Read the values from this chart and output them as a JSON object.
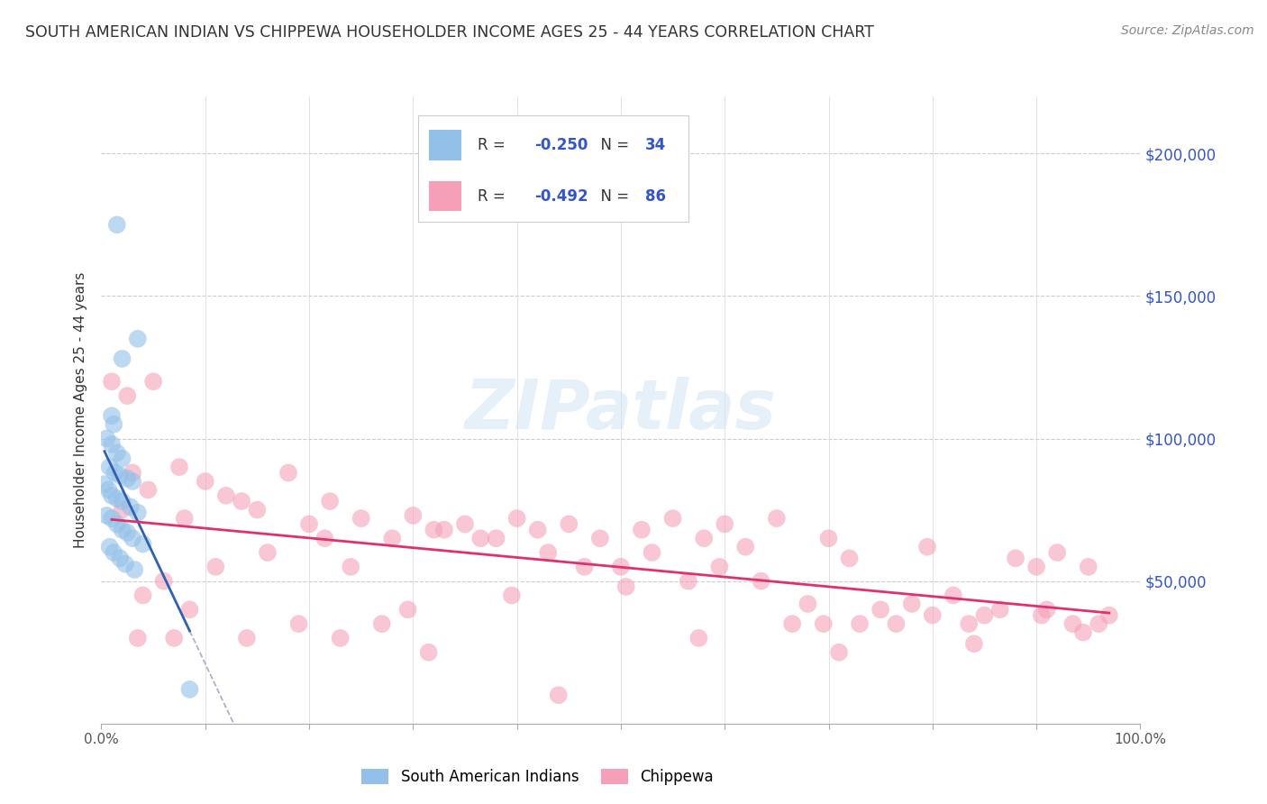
{
  "title": "SOUTH AMERICAN INDIAN VS CHIPPEWA HOUSEHOLDER INCOME AGES 25 - 44 YEARS CORRELATION CHART",
  "source": "Source: ZipAtlas.com",
  "ylabel": "Householder Income Ages 25 - 44 years",
  "background_color": "#ffffff",
  "blue_label": "South American Indians",
  "pink_label": "Chippewa",
  "blue_R": "-0.250",
  "blue_N": "34",
  "pink_R": "-0.492",
  "pink_N": "86",
  "blue_color": "#92c0e8",
  "pink_color": "#f5a0b8",
  "blue_line_color": "#3060b0",
  "pink_line_color": "#e03070",
  "dashed_line_color": "#aaaacc",
  "yticks": [
    0,
    50000,
    100000,
    150000,
    200000
  ],
  "xlim": [
    0,
    100
  ],
  "ylim": [
    0,
    220000
  ],
  "blue_x": [
    1.5,
    3.5,
    2.0,
    1.0,
    1.2,
    0.5,
    1.0,
    1.5,
    2.0,
    0.8,
    1.3,
    1.8,
    2.5,
    3.0,
    0.3,
    0.7,
    1.0,
    1.5,
    2.0,
    2.8,
    3.5,
    0.5,
    1.0,
    1.5,
    2.0,
    2.5,
    3.0,
    4.0,
    0.8,
    1.2,
    1.8,
    2.3,
    3.2,
    8.5
  ],
  "blue_y": [
    175000,
    135000,
    128000,
    108000,
    105000,
    100000,
    98000,
    95000,
    93000,
    90000,
    88000,
    87000,
    86000,
    85000,
    84000,
    82000,
    80000,
    79000,
    78000,
    76000,
    74000,
    73000,
    72000,
    70000,
    68000,
    67000,
    65000,
    63000,
    62000,
    60000,
    58000,
    56000,
    54000,
    12000
  ],
  "pink_x": [
    1.0,
    2.5,
    5.0,
    3.0,
    4.5,
    7.5,
    10.0,
    8.0,
    12.0,
    15.0,
    18.0,
    20.0,
    22.0,
    25.0,
    28.0,
    30.0,
    32.0,
    35.0,
    38.0,
    40.0,
    42.0,
    45.0,
    48.0,
    50.0,
    52.0,
    55.0,
    58.0,
    60.0,
    62.0,
    65.0,
    68.0,
    70.0,
    72.0,
    75.0,
    78.0,
    80.0,
    82.0,
    85.0,
    88.0,
    90.0,
    92.0,
    95.0,
    97.0,
    2.0,
    4.0,
    6.0,
    8.5,
    11.0,
    13.5,
    16.0,
    19.0,
    21.5,
    24.0,
    27.0,
    29.5,
    33.0,
    36.5,
    39.5,
    43.0,
    46.5,
    50.5,
    53.0,
    56.5,
    59.5,
    63.5,
    66.5,
    69.5,
    73.0,
    76.5,
    79.5,
    83.5,
    86.5,
    91.0,
    93.5,
    96.0,
    3.5,
    7.0,
    14.0,
    23.0,
    31.5,
    44.0,
    57.5,
    71.0,
    84.0,
    94.5,
    90.5
  ],
  "pink_y": [
    120000,
    115000,
    120000,
    88000,
    82000,
    90000,
    85000,
    72000,
    80000,
    75000,
    88000,
    70000,
    78000,
    72000,
    65000,
    73000,
    68000,
    70000,
    65000,
    72000,
    68000,
    70000,
    65000,
    55000,
    68000,
    72000,
    65000,
    70000,
    62000,
    72000,
    42000,
    65000,
    58000,
    40000,
    42000,
    38000,
    45000,
    38000,
    58000,
    55000,
    60000,
    55000,
    38000,
    75000,
    45000,
    50000,
    40000,
    55000,
    78000,
    60000,
    35000,
    65000,
    55000,
    35000,
    40000,
    68000,
    65000,
    45000,
    60000,
    55000,
    48000,
    60000,
    50000,
    55000,
    50000,
    35000,
    35000,
    35000,
    35000,
    62000,
    35000,
    40000,
    40000,
    35000,
    35000,
    30000,
    30000,
    30000,
    30000,
    25000,
    10000,
    30000,
    25000,
    28000,
    32000,
    38000
  ]
}
